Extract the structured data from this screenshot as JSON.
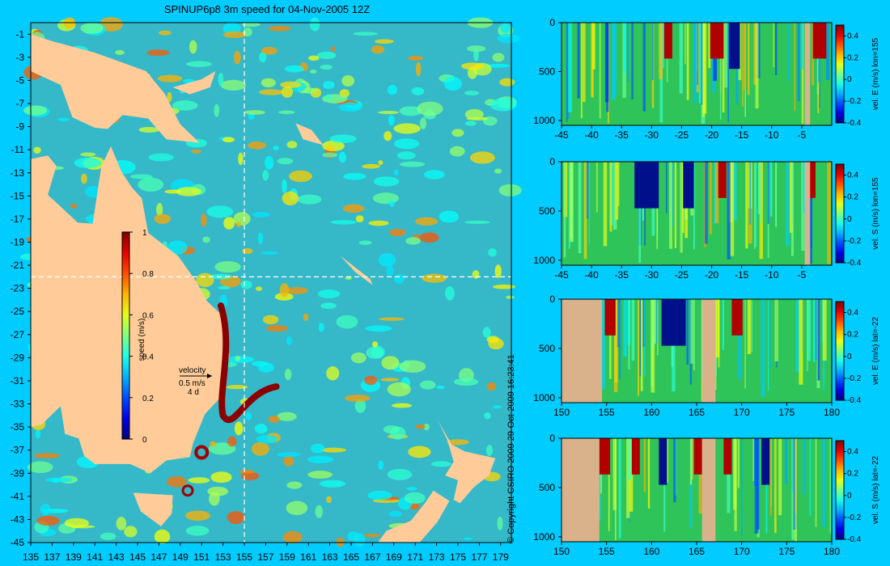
{
  "title": "SPINUP6p8 3m speed for 04-Nov-2005 12Z",
  "copyright": "© Copyright CSIRO 2009   29-Oct-2009 16:23:41",
  "colors": {
    "background": "#00ccff",
    "land": "#ffcc99",
    "seafloor": "#d9b28c",
    "section_line": "#ffffff"
  },
  "chart_data": [
    {
      "type": "heatmap",
      "name": "speed_map",
      "title": "SPINUP6p8 3m speed for 04-Nov-2005 12Z",
      "x_ticks": [
        "135",
        "137",
        "139",
        "141",
        "143",
        "145",
        "147",
        "149",
        "151",
        "153",
        "155",
        "157",
        "159",
        "161",
        "163",
        "165",
        "167",
        "169",
        "171",
        "173",
        "175",
        "177",
        "179"
      ],
      "y_ticks": [
        "-1",
        "-3",
        "-5",
        "-7",
        "-9",
        "-11",
        "-13",
        "-15",
        "-17",
        "-19",
        "-21",
        "-23",
        "-25",
        "-27",
        "-29",
        "-31",
        "-33",
        "-35",
        "-37",
        "-39",
        "-41",
        "-43",
        "-45"
      ],
      "xlim": [
        135,
        180
      ],
      "ylim": [
        -45,
        0
      ],
      "section_lines": {
        "lon": 155,
        "lat": -22
      },
      "colorbar": {
        "label": "speed (m/s)",
        "range": [
          0,
          1
        ],
        "ticks": [
          "1",
          "0.8",
          "0.6",
          "0.4",
          "0.2",
          "0"
        ]
      },
      "velocity_legend": {
        "label": "velocity",
        "speed": "0.5 m/s",
        "time": "4 d"
      },
      "colormap": "jet"
    },
    {
      "type": "heatmap",
      "name": "section_east_lon155",
      "ylabel": "vel. E (m/s) lon=155",
      "x_ticks": [
        "-45",
        "-40",
        "-35",
        "-30",
        "-25",
        "-20",
        "-15",
        "-10",
        "-5"
      ],
      "y_ticks": [
        "0",
        "500",
        "1000"
      ],
      "xlim": [
        -45,
        0
      ],
      "ylim": [
        0,
        1050
      ],
      "colorbar": {
        "range": [
          -0.4,
          0.5
        ],
        "ticks": [
          "0.4",
          "0.2",
          "0",
          "-0.2",
          "-0.4"
        ]
      }
    },
    {
      "type": "heatmap",
      "name": "section_south_lon155",
      "ylabel": "vel. S (m/s) lon=155",
      "x_ticks": [
        "-45",
        "-40",
        "-35",
        "-30",
        "-25",
        "-20",
        "-15",
        "-10",
        "-5"
      ],
      "y_ticks": [
        "0",
        "500",
        "1000"
      ],
      "xlim": [
        -45,
        0
      ],
      "ylim": [
        0,
        1050
      ],
      "colorbar": {
        "range": [
          -0.4,
          0.5
        ],
        "ticks": [
          "0.4",
          "0.2",
          "0",
          "-0.2",
          "-0.4"
        ]
      }
    },
    {
      "type": "heatmap",
      "name": "section_east_lat22",
      "ylabel": "vel. E (m/s) lat=-22",
      "x_ticks": [
        "150",
        "155",
        "160",
        "165",
        "170",
        "175",
        "180"
      ],
      "y_ticks": [
        "0",
        "500",
        "1000"
      ],
      "xlim": [
        150,
        180
      ],
      "ylim": [
        0,
        1050
      ],
      "colorbar": {
        "range": [
          -0.4,
          0.5
        ],
        "ticks": [
          "0.4",
          "0.2",
          "0",
          "-0.2",
          "-0.4"
        ]
      }
    },
    {
      "type": "heatmap",
      "name": "section_south_lat22",
      "ylabel": "vel. S (m/s) lat=-22",
      "x_ticks": [
        "150",
        "155",
        "160",
        "165",
        "170",
        "175",
        "180"
      ],
      "y_ticks": [
        "0",
        "500",
        "1000"
      ],
      "xlim": [
        150,
        180
      ],
      "ylim": [
        0,
        1050
      ],
      "colorbar": {
        "range": [
          -0.4,
          0.5
        ],
        "ticks": [
          "0.4",
          "0.2",
          "0",
          "-0.2",
          "-0.4"
        ]
      }
    }
  ]
}
